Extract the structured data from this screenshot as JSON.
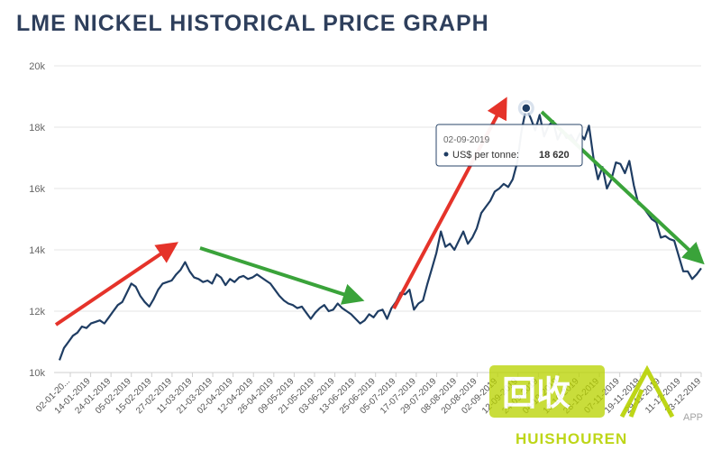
{
  "page": {
    "title": "LME NICKEL HISTORICAL PRICE GRAPH"
  },
  "colors": {
    "line": "#1f3d63",
    "grid": "#e6e6e6",
    "red_arrow": "#e5332a",
    "green_arrow": "#3aa33a",
    "marker": "#1f3d63",
    "watermark": "#b8d200"
  },
  "tooltip": {
    "date": "02-09-2019",
    "label": "US$ per tonne:",
    "value": "18 620"
  },
  "watermark": {
    "cn_text": "回收",
    "brand": "HUISHOUREN",
    "app_text": "APP"
  },
  "chart_data": {
    "type": "line",
    "title": "LME NICKEL HISTORICAL PRICE GRAPH",
    "xlabel": "",
    "ylabel": "",
    "ylim": [
      10000,
      20000
    ],
    "y_ticks": [
      10000,
      12000,
      14000,
      16000,
      18000,
      20000
    ],
    "y_tick_labels": [
      "10k",
      "12k",
      "14k",
      "16k",
      "18k",
      "20k"
    ],
    "x_tick_labels": [
      "02-01-20...",
      "14-01-2019",
      "24-01-2019",
      "05-02-2019",
      "15-02-2019",
      "27-02-2019",
      "11-03-2019",
      "21-03-2019",
      "02-04-2019",
      "12-04-2019",
      "26-04-2019",
      "09-05-2019",
      "21-05-2019",
      "03-06-2019",
      "13-06-2019",
      "25-06-2019",
      "05-07-2019",
      "17-07-2019",
      "29-07-2019",
      "08-08-2019",
      "20-08-2019",
      "02-09-2019",
      "12-09-2019",
      "24-09-2019",
      "04-10-2019",
      "16-10-2019",
      "28-10-2019",
      "07-11-2019",
      "19-11-2019",
      "29-11-2019",
      "11-12-2019",
      "23-12-2019"
    ],
    "grid": true,
    "legend": "none",
    "series": [
      {
        "values": [
          10400,
          10800,
          11000,
          11200,
          11300,
          11500,
          11450,
          11600,
          11650,
          11700,
          11600,
          11800,
          12000,
          12200,
          12300,
          12600,
          12900,
          12800,
          12500,
          12300,
          12150,
          12400,
          12700,
          12900,
          12950,
          13000,
          13200,
          13350,
          13600,
          13300,
          13100,
          13050,
          12950,
          13000,
          12900,
          13200,
          13100,
          12850,
          13050,
          12950,
          13100,
          13150,
          13050,
          13100,
          13200,
          13100,
          13000,
          12900,
          12700,
          12500,
          12350,
          12250,
          12200,
          12100,
          12150,
          11950,
          11750,
          11950,
          12100,
          12200,
          12000,
          12050,
          12250,
          12100,
          12000,
          11900,
          11750,
          11600,
          11700,
          11900,
          11800,
          12000,
          12050,
          11750,
          12100,
          12300,
          12600,
          12550,
          12700,
          12050,
          12250,
          12350,
          12900,
          13400,
          13900,
          14600,
          14100,
          14200,
          14000,
          14300,
          14600,
          14200,
          14400,
          14700,
          15200,
          15400,
          15600,
          15900,
          16000,
          16150,
          16050,
          16300,
          16850,
          17900,
          18620,
          18300,
          17900,
          18400,
          17700,
          18050,
          18200,
          17600,
          17900,
          17650,
          17750,
          17500,
          17800,
          17600,
          18050,
          17000,
          16300,
          16700,
          16000,
          16300,
          16850,
          16800,
          16500,
          16900,
          16100,
          15500,
          15400,
          15200,
          15000,
          14900,
          14400,
          14450,
          14350,
          14300,
          13800,
          13300,
          13300,
          13050,
          13200,
          13400
        ]
      }
    ],
    "annotations": [
      {
        "type": "arrow",
        "color": "red",
        "from_index": 0,
        "to_index": 33
      },
      {
        "type": "arrow",
        "color": "green",
        "from_index": 42,
        "to_index": 90
      },
      {
        "type": "arrow",
        "color": "red",
        "from_index": 100,
        "to_index": 135
      },
      {
        "type": "arrow",
        "color": "green",
        "from_index": 145,
        "to_index": 192
      },
      {
        "type": "marker",
        "index": 104,
        "value": 18620,
        "date": "02-09-2019"
      }
    ]
  }
}
